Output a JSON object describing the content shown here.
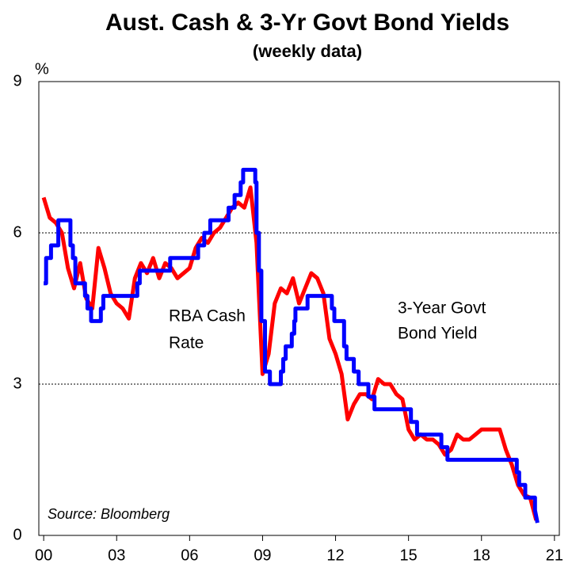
{
  "chart_data": {
    "type": "line",
    "title": "Aust. Cash & 3-Yr Govt Bond Yields",
    "subtitle": "(weekly data)",
    "y_unit": "%",
    "source": "Source: Bloomberg",
    "xlim": [
      1999.8,
      2021.2
    ],
    "xticks": [
      {
        "value": 2000,
        "label": "00"
      },
      {
        "value": 2003,
        "label": "03"
      },
      {
        "value": 2006,
        "label": "06"
      },
      {
        "value": 2009,
        "label": "09"
      },
      {
        "value": 2012,
        "label": "12"
      },
      {
        "value": 2015,
        "label": "15"
      },
      {
        "value": 2018,
        "label": "18"
      },
      {
        "value": 2021,
        "label": "21"
      }
    ],
    "ylim": [
      0,
      9
    ],
    "yticks": [
      0,
      3,
      6,
      9
    ],
    "grid": true,
    "series": [
      {
        "name": [
          "RBA Cash",
          "Rate"
        ],
        "color": "#0000ff",
        "x": [
          2000.0,
          2000.1,
          2000.1,
          2000.3,
          2000.3,
          2000.6,
          2000.6,
          2001.1,
          2001.1,
          2001.2,
          2001.2,
          2001.3,
          2001.3,
          2001.7,
          2001.7,
          2001.8,
          2001.8,
          2001.95,
          2001.95,
          2002.35,
          2002.35,
          2002.45,
          2002.45,
          2003.85,
          2003.85,
          2003.95,
          2003.95,
          2005.2,
          2005.2,
          2006.35,
          2006.35,
          2006.6,
          2006.6,
          2006.85,
          2006.85,
          2007.6,
          2007.6,
          2007.85,
          2007.85,
          2008.1,
          2008.1,
          2008.2,
          2008.2,
          2008.7,
          2008.7,
          2008.75,
          2008.75,
          2008.85,
          2008.85,
          2008.95,
          2008.95,
          2009.1,
          2009.1,
          2009.3,
          2009.3,
          2009.75,
          2009.75,
          2009.85,
          2009.85,
          2009.95,
          2009.95,
          2010.2,
          2010.2,
          2010.3,
          2010.3,
          2010.35,
          2010.35,
          2010.85,
          2010.85,
          2011.85,
          2011.85,
          2011.95,
          2011.95,
          2012.35,
          2012.35,
          2012.45,
          2012.45,
          2012.75,
          2012.75,
          2012.95,
          2012.95,
          2013.35,
          2013.35,
          2013.6,
          2013.6,
          2015.1,
          2015.1,
          2015.35,
          2015.35,
          2016.35,
          2016.35,
          2016.6,
          2016.6,
          2019.45,
          2019.45,
          2019.55,
          2019.55,
          2019.8,
          2019.8,
          2020.2,
          2020.2,
          2020.3
        ],
        "values": [
          5.0,
          5.0,
          5.5,
          5.5,
          5.75,
          5.75,
          6.25,
          6.25,
          5.75,
          5.75,
          5.5,
          5.5,
          5.0,
          5.0,
          4.75,
          4.75,
          4.5,
          4.5,
          4.25,
          4.25,
          4.5,
          4.5,
          4.75,
          4.75,
          5.0,
          5.0,
          5.25,
          5.25,
          5.5,
          5.5,
          5.75,
          5.75,
          6.0,
          6.0,
          6.25,
          6.25,
          6.5,
          6.5,
          6.75,
          6.75,
          7.0,
          7.0,
          7.25,
          7.25,
          7.0,
          7.0,
          6.0,
          6.0,
          5.25,
          5.25,
          4.25,
          4.25,
          3.25,
          3.25,
          3.0,
          3.0,
          3.25,
          3.25,
          3.5,
          3.5,
          3.75,
          3.75,
          4.0,
          4.0,
          4.25,
          4.25,
          4.5,
          4.5,
          4.75,
          4.75,
          4.5,
          4.5,
          4.25,
          4.25,
          3.75,
          3.75,
          3.5,
          3.5,
          3.25,
          3.25,
          3.0,
          3.0,
          2.75,
          2.75,
          2.5,
          2.5,
          2.25,
          2.25,
          2.0,
          2.0,
          1.75,
          1.75,
          1.5,
          1.5,
          1.25,
          1.25,
          1.0,
          1.0,
          0.75,
          0.75,
          0.5,
          0.25
        ]
      },
      {
        "name": [
          "3-Year Govt",
          "Bond Yield"
        ],
        "color": "#ff0000",
        "x": [
          2000.0,
          2000.25,
          2000.5,
          2000.75,
          2001.0,
          2001.25,
          2001.5,
          2001.75,
          2002.0,
          2002.25,
          2002.5,
          2002.75,
          2003.0,
          2003.25,
          2003.5,
          2003.75,
          2004.0,
          2004.25,
          2004.5,
          2004.75,
          2005.0,
          2005.25,
          2005.5,
          2005.75,
          2006.0,
          2006.25,
          2006.5,
          2006.75,
          2007.0,
          2007.25,
          2007.5,
          2007.75,
          2008.0,
          2008.25,
          2008.5,
          2008.75,
          2009.0,
          2009.25,
          2009.5,
          2009.75,
          2010.0,
          2010.25,
          2010.5,
          2010.75,
          2011.0,
          2011.25,
          2011.5,
          2011.75,
          2012.0,
          2012.25,
          2012.5,
          2012.75,
          2013.0,
          2013.25,
          2013.5,
          2013.75,
          2014.0,
          2014.25,
          2014.5,
          2014.75,
          2015.0,
          2015.25,
          2015.5,
          2015.75,
          2016.0,
          2016.25,
          2016.5,
          2016.75,
          2017.0,
          2017.25,
          2017.5,
          2017.75,
          2018.0,
          2018.25,
          2018.5,
          2018.75,
          2019.0,
          2019.25,
          2019.5,
          2019.75,
          2020.0,
          2020.25
        ],
        "values": [
          6.7,
          6.3,
          6.2,
          6.0,
          5.3,
          4.9,
          5.4,
          4.7,
          4.5,
          5.7,
          5.3,
          4.8,
          4.6,
          4.5,
          4.3,
          5.1,
          5.4,
          5.2,
          5.5,
          5.1,
          5.4,
          5.3,
          5.1,
          5.2,
          5.3,
          5.7,
          5.9,
          5.8,
          6.0,
          6.1,
          6.3,
          6.5,
          6.6,
          6.5,
          6.9,
          5.8,
          3.2,
          3.6,
          4.6,
          4.9,
          4.8,
          5.1,
          4.6,
          4.9,
          5.2,
          5.1,
          4.8,
          3.9,
          3.6,
          3.2,
          2.3,
          2.6,
          2.8,
          2.8,
          2.7,
          3.1,
          3.0,
          3.0,
          2.8,
          2.7,
          2.1,
          1.9,
          2.0,
          1.9,
          1.9,
          1.8,
          1.6,
          1.7,
          2.0,
          1.9,
          1.9,
          2.0,
          2.1,
          2.1,
          2.1,
          2.1,
          1.7,
          1.4,
          1.0,
          0.8,
          0.75,
          0.3
        ]
      }
    ]
  }
}
